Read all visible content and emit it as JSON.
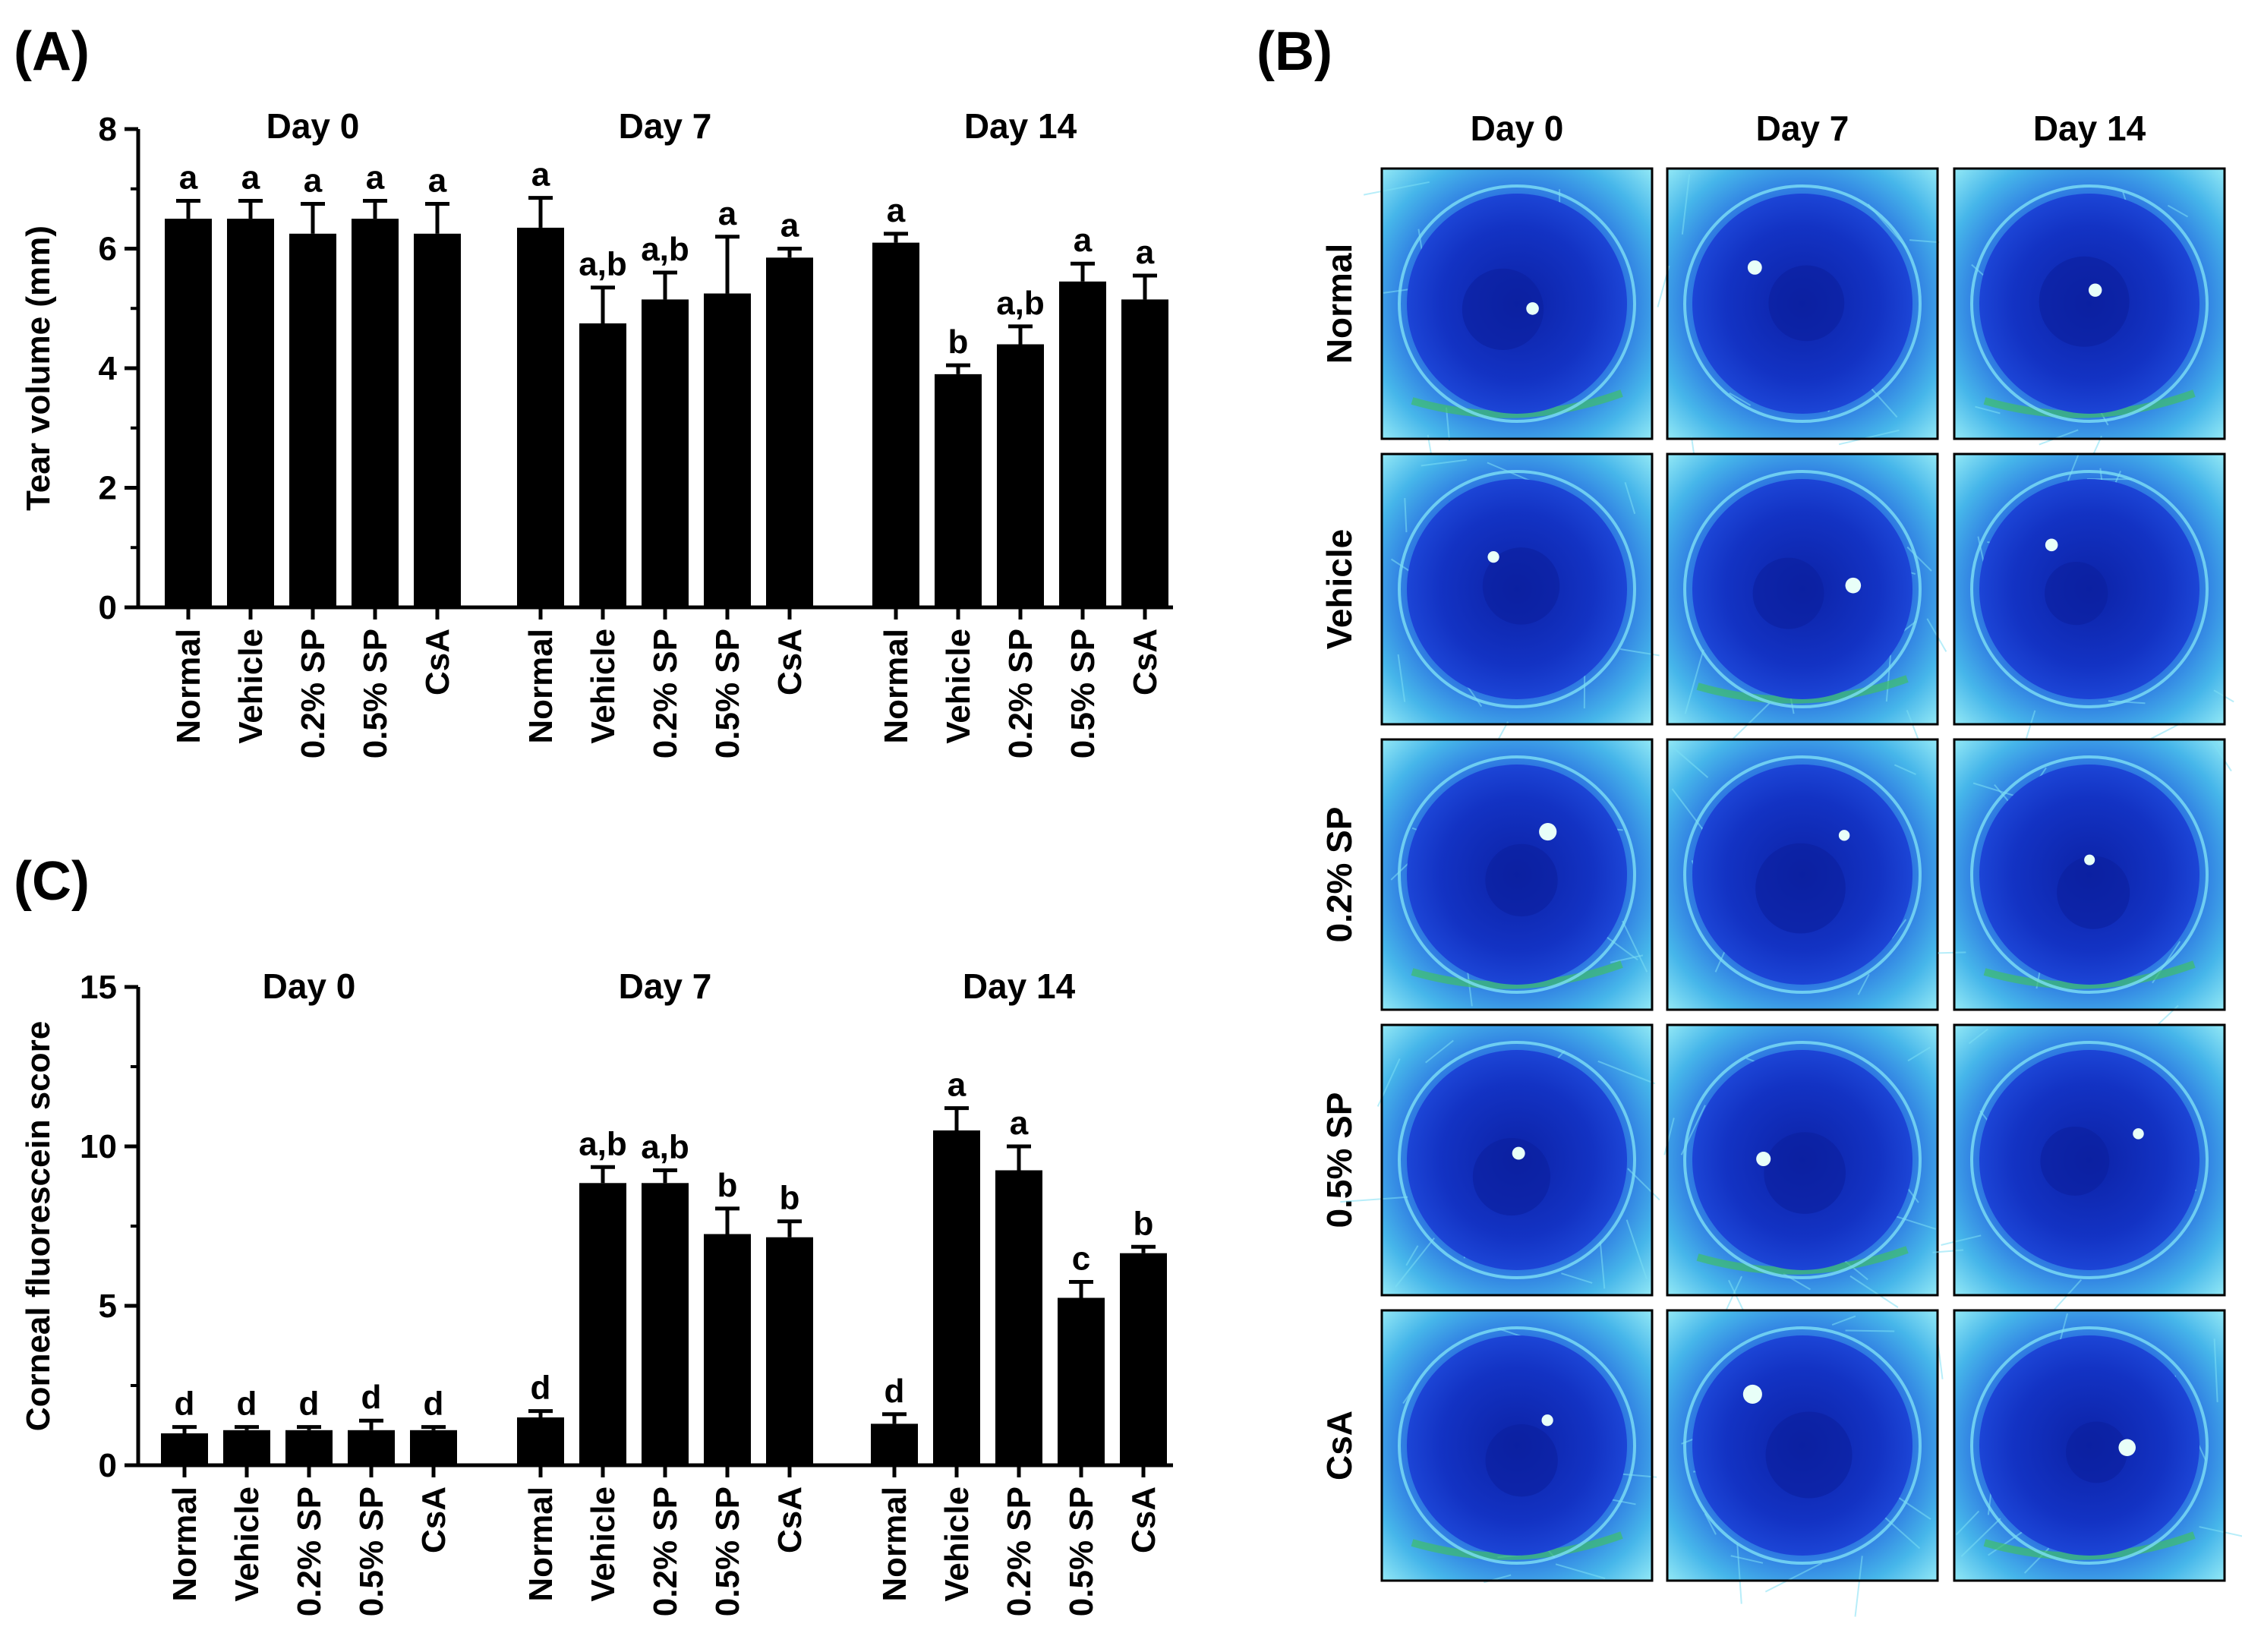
{
  "panel_labels": {
    "a": "(A)",
    "b": "(B)",
    "c": "(C)"
  },
  "chart_data": [
    {
      "panel": "(A)",
      "type": "bar",
      "ylabel": "Tear volume (mm)",
      "ylim": [
        0,
        8
      ],
      "yticks": [
        0,
        2,
        4,
        6,
        8
      ],
      "groups": [
        {
          "title": "Day 0",
          "categories": [
            "Normal",
            "Vehicle",
            "0.2% SP",
            "0.5% SP",
            "CsA"
          ],
          "values": [
            6.5,
            6.5,
            6.25,
            6.5,
            6.25
          ],
          "errors": [
            0.3,
            0.3,
            0.5,
            0.3,
            0.5
          ],
          "labels": [
            "a",
            "a",
            "a",
            "a",
            "a"
          ]
        },
        {
          "title": "Day 7",
          "categories": [
            "Normal",
            "Vehicle",
            "0.2% SP",
            "0.5% SP",
            "CsA"
          ],
          "values": [
            6.35,
            4.75,
            5.15,
            5.25,
            5.85
          ],
          "errors": [
            0.5,
            0.6,
            0.45,
            0.95,
            0.15
          ],
          "labels": [
            "a",
            "a,b",
            "a,b",
            "a",
            "a"
          ]
        },
        {
          "title": "Day 14",
          "categories": [
            "Normal",
            "Vehicle",
            "0.2% SP",
            "0.5% SP",
            "CsA"
          ],
          "values": [
            6.1,
            3.9,
            4.4,
            5.45,
            5.15
          ],
          "errors": [
            0.15,
            0.15,
            0.3,
            0.3,
            0.4
          ],
          "labels": [
            "a",
            "b",
            "a,b",
            "a",
            "a"
          ]
        }
      ]
    },
    {
      "panel": "(C)",
      "type": "bar",
      "ylabel": "Corneal fluorescein score",
      "ylim": [
        0,
        15
      ],
      "yticks": [
        0,
        5,
        10,
        15
      ],
      "groups": [
        {
          "title": "Day 0",
          "categories": [
            "Normal",
            "Vehicle",
            "0.2% SP",
            "0.5% SP",
            "CsA"
          ],
          "values": [
            1.0,
            1.1,
            1.1,
            1.1,
            1.1
          ],
          "errors": [
            0.2,
            0.1,
            0.1,
            0.3,
            0.1
          ],
          "labels": [
            "d",
            "d",
            "d",
            "d",
            "d"
          ]
        },
        {
          "title": "Day 7",
          "categories": [
            "Normal",
            "Vehicle",
            "0.2% SP",
            "0.5% SP",
            "CsA"
          ],
          "values": [
            1.5,
            8.85,
            8.85,
            7.25,
            7.15
          ],
          "errors": [
            0.2,
            0.5,
            0.4,
            0.8,
            0.5
          ],
          "labels": [
            "d",
            "a,b",
            "a,b",
            "b",
            "b"
          ]
        },
        {
          "title": "Day 14",
          "categories": [
            "Normal",
            "Vehicle",
            "0.2% SP",
            "0.5% SP",
            "CsA"
          ],
          "values": [
            1.3,
            10.5,
            9.25,
            5.25,
            6.65
          ],
          "errors": [
            0.3,
            0.7,
            0.75,
            0.5,
            0.2
          ],
          "labels": [
            "d",
            "a",
            "a",
            "c",
            "b"
          ]
        }
      ]
    }
  ],
  "image_grid": {
    "panel": "(B)",
    "columns": [
      "Day 0",
      "Day 7",
      "Day 14"
    ],
    "rows": [
      "Normal",
      "Vehicle",
      "0.2% SP",
      "0.5% SP",
      "CsA"
    ],
    "colors": {
      "pupil": "#0b1f9e",
      "iris": "#1534d8",
      "tissue": "#3a9fe0",
      "bright": "#7de0f5",
      "green": "#3fbf6a",
      "reflex": "#e8fff8"
    }
  }
}
